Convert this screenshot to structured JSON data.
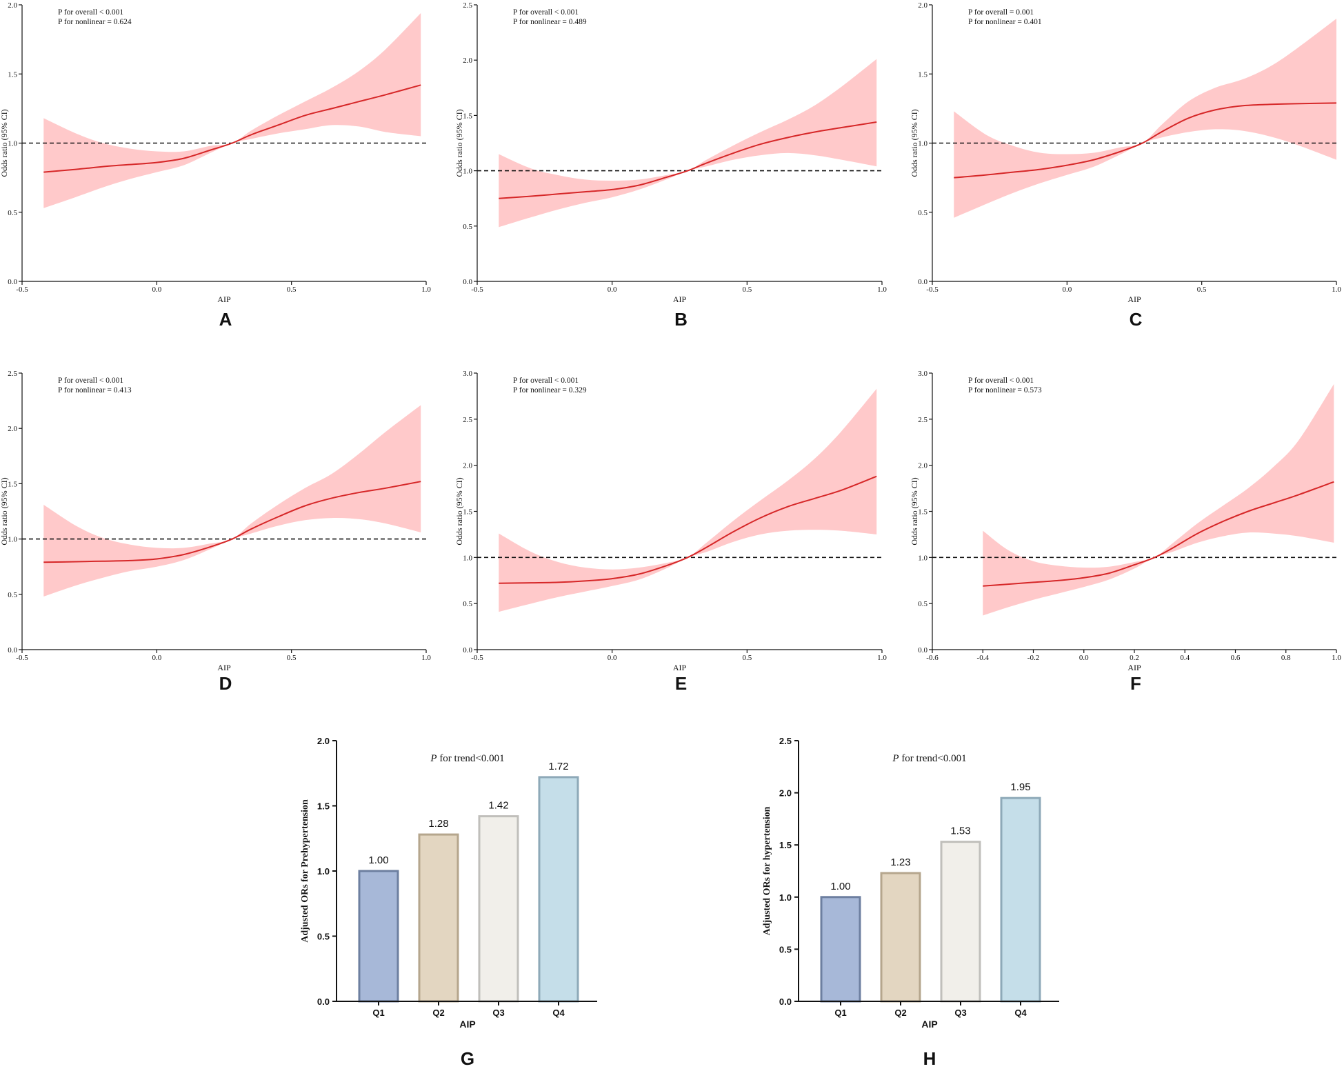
{
  "colors": {
    "curve": "#d62728",
    "band": "#ffc9ca",
    "axis": "#111111",
    "bar_q1": "#a7b8d8",
    "bar_q1_edge": "#6d7fa0",
    "bar_q2": "#e3d6c1",
    "bar_q2_edge": "#b5a68d",
    "bar_q3": "#f1efea",
    "bar_q3_edge": "#c0bfbb",
    "bar_q4": "#c5dee9",
    "bar_q4_edge": "#8ea9b8"
  },
  "chart_data": [
    {
      "panel": "A",
      "type": "line",
      "xlabel": "AIP",
      "ylabel": "Odds ratio (95% CI)",
      "xlim": [
        -0.5,
        1.0
      ],
      "ylim": [
        0.0,
        2.0
      ],
      "xticks": [
        -0.5,
        0.0,
        0.5,
        1.0
      ],
      "xtick_labels": [
        "-0.5",
        "0.0",
        "0.5",
        "1.0"
      ],
      "yticks": [
        0.0,
        0.5,
        1.0,
        1.5,
        2.0
      ],
      "ytick_labels": [
        "0.0",
        "0.5",
        "1.0",
        "1.5",
        "2.0"
      ],
      "reference_line": 1.0,
      "annotation_overall": "P for overall < 0.001",
      "annotation_nonlinear": "P for nonlinear = 0.624",
      "x": [
        -0.42,
        -0.3,
        -0.2,
        -0.1,
        0.0,
        0.1,
        0.2,
        0.28,
        0.35,
        0.45,
        0.55,
        0.65,
        0.75,
        0.85,
        0.98
      ],
      "y": [
        0.79,
        0.81,
        0.83,
        0.845,
        0.86,
        0.89,
        0.95,
        1.0,
        1.06,
        1.13,
        1.2,
        1.25,
        1.3,
        1.35,
        1.42
      ],
      "lower": [
        0.53,
        0.61,
        0.68,
        0.74,
        0.79,
        0.84,
        0.93,
        1.0,
        1.03,
        1.07,
        1.1,
        1.13,
        1.12,
        1.08,
        1.05
      ],
      "upper": [
        1.18,
        1.07,
        1.0,
        0.96,
        0.94,
        0.94,
        0.98,
        1.0,
        1.09,
        1.2,
        1.3,
        1.4,
        1.52,
        1.68,
        1.94
      ]
    },
    {
      "panel": "B",
      "type": "line",
      "xlabel": "AIP",
      "ylabel": "Odds ratio (95% CI)",
      "xlim": [
        -0.5,
        1.0
      ],
      "ylim": [
        0.0,
        2.5
      ],
      "xticks": [
        -0.5,
        0.0,
        0.5,
        1.0
      ],
      "xtick_labels": [
        "-0.5",
        "0.0",
        "0.5",
        "1.0"
      ],
      "yticks": [
        0.0,
        0.5,
        1.0,
        1.5,
        2.0,
        2.5
      ],
      "ytick_labels": [
        "0.0",
        "0.5",
        "1.0",
        "1.5",
        "2.0",
        "2.5"
      ],
      "reference_line": 1.0,
      "annotation_overall": "P for overall < 0.001",
      "annotation_nonlinear": "P for nonlinear = 0.489",
      "x": [
        -0.42,
        -0.3,
        -0.2,
        -0.1,
        0.0,
        0.1,
        0.2,
        0.28,
        0.35,
        0.45,
        0.55,
        0.65,
        0.75,
        0.85,
        0.98
      ],
      "y": [
        0.75,
        0.77,
        0.79,
        0.81,
        0.83,
        0.87,
        0.94,
        1.0,
        1.07,
        1.16,
        1.24,
        1.3,
        1.35,
        1.39,
        1.44
      ],
      "lower": [
        0.49,
        0.58,
        0.65,
        0.71,
        0.76,
        0.83,
        0.92,
        1.0,
        1.04,
        1.1,
        1.14,
        1.16,
        1.14,
        1.1,
        1.04
      ],
      "upper": [
        1.15,
        1.02,
        0.96,
        0.92,
        0.91,
        0.92,
        0.96,
        1.0,
        1.1,
        1.23,
        1.35,
        1.46,
        1.59,
        1.76,
        2.01
      ]
    },
    {
      "panel": "C",
      "type": "line",
      "xlabel": "AIP",
      "ylabel": "Odds ratio (95% CI)",
      "xlim": [
        -0.5,
        1.0
      ],
      "ylim": [
        0.0,
        2.0
      ],
      "xticks": [
        -0.5,
        0.0,
        0.5,
        1.0
      ],
      "xtick_labels": [
        "-0.5",
        "0.0",
        "0.5",
        "1.0"
      ],
      "yticks": [
        0.0,
        0.5,
        1.0,
        1.5,
        2.0
      ],
      "ytick_labels": [
        "0.0",
        "0.5",
        "1.0",
        "1.5",
        "2.0"
      ],
      "reference_line": 1.0,
      "annotation_overall": "P for overall = 0.001",
      "annotation_nonlinear": "P for nonlinear = 0.401",
      "x": [
        -0.42,
        -0.3,
        -0.2,
        -0.1,
        0.0,
        0.1,
        0.2,
        0.28,
        0.35,
        0.45,
        0.55,
        0.65,
        0.75,
        0.85,
        1.0
      ],
      "y": [
        0.75,
        0.77,
        0.79,
        0.81,
        0.84,
        0.88,
        0.94,
        1.0,
        1.08,
        1.18,
        1.24,
        1.27,
        1.28,
        1.285,
        1.29
      ],
      "lower": [
        0.46,
        0.56,
        0.64,
        0.71,
        0.77,
        0.83,
        0.92,
        1.0,
        1.04,
        1.08,
        1.1,
        1.09,
        1.05,
        0.99,
        0.88
      ],
      "upper": [
        1.23,
        1.06,
        0.98,
        0.93,
        0.92,
        0.93,
        0.97,
        1.0,
        1.13,
        1.3,
        1.4,
        1.46,
        1.55,
        1.68,
        1.9
      ]
    },
    {
      "panel": "D",
      "type": "line",
      "xlabel": "AIP",
      "ylabel": "Odds ratio (95% CI)",
      "xlim": [
        -0.5,
        1.0
      ],
      "ylim": [
        0.0,
        2.5
      ],
      "xticks": [
        -0.5,
        0.0,
        0.5,
        1.0
      ],
      "xtick_labels": [
        "-0.5",
        "0.0",
        "0.5",
        "1.0"
      ],
      "yticks": [
        0.0,
        0.5,
        1.0,
        1.5,
        2.0,
        2.5
      ],
      "ytick_labels": [
        "0.0",
        "0.5",
        "1.0",
        "1.5",
        "2.0",
        "2.5"
      ],
      "reference_line": 1.0,
      "annotation_overall": "P for overall < 0.001",
      "annotation_nonlinear": "P for nonlinear = 0.413",
      "x": [
        -0.42,
        -0.3,
        -0.2,
        -0.1,
        0.0,
        0.1,
        0.2,
        0.28,
        0.35,
        0.45,
        0.55,
        0.65,
        0.75,
        0.85,
        0.98
      ],
      "y": [
        0.79,
        0.795,
        0.8,
        0.805,
        0.82,
        0.86,
        0.93,
        1.0,
        1.09,
        1.2,
        1.3,
        1.37,
        1.42,
        1.46,
        1.52
      ],
      "lower": [
        0.48,
        0.58,
        0.65,
        0.71,
        0.75,
        0.81,
        0.91,
        1.0,
        1.05,
        1.12,
        1.17,
        1.19,
        1.18,
        1.14,
        1.06
      ],
      "upper": [
        1.31,
        1.12,
        1.01,
        0.95,
        0.92,
        0.92,
        0.96,
        1.0,
        1.14,
        1.31,
        1.46,
        1.59,
        1.77,
        1.97,
        2.21
      ]
    },
    {
      "panel": "E",
      "type": "line",
      "xlabel": "AIP",
      "ylabel": "Odds ratio (95% CI)",
      "xlim": [
        -0.5,
        1.0
      ],
      "ylim": [
        0.0,
        3.0
      ],
      "xticks": [
        -0.5,
        0.0,
        0.5,
        1.0
      ],
      "xtick_labels": [
        "-0.5",
        "0.0",
        "0.5",
        "1.0"
      ],
      "yticks": [
        0.0,
        0.5,
        1.0,
        1.5,
        2.0,
        2.5,
        3.0
      ],
      "ytick_labels": [
        "0.0",
        "0.5",
        "1.0",
        "1.5",
        "2.0",
        "2.5",
        "3.0"
      ],
      "reference_line": 1.0,
      "annotation_overall": "P for overall < 0.001",
      "annotation_nonlinear": "P for nonlinear = 0.329",
      "x": [
        -0.42,
        -0.3,
        -0.2,
        -0.1,
        0.0,
        0.1,
        0.2,
        0.28,
        0.35,
        0.45,
        0.55,
        0.65,
        0.75,
        0.85,
        0.98
      ],
      "y": [
        0.72,
        0.725,
        0.73,
        0.745,
        0.77,
        0.82,
        0.91,
        1.0,
        1.11,
        1.28,
        1.43,
        1.55,
        1.64,
        1.73,
        1.88
      ],
      "lower": [
        0.41,
        0.5,
        0.57,
        0.63,
        0.69,
        0.76,
        0.88,
        1.0,
        1.06,
        1.17,
        1.25,
        1.29,
        1.3,
        1.29,
        1.25
      ],
      "upper": [
        1.26,
        1.06,
        0.95,
        0.89,
        0.87,
        0.89,
        0.94,
        1.0,
        1.16,
        1.4,
        1.62,
        1.83,
        2.07,
        2.37,
        2.83
      ]
    },
    {
      "panel": "F",
      "type": "line",
      "xlabel": "AIP",
      "ylabel": "Odds ratio (95% CI)",
      "xlim": [
        -0.6,
        1.0
      ],
      "ylim": [
        0.0,
        3.0
      ],
      "xticks": [
        -0.6,
        -0.4,
        -0.2,
        0.0,
        0.2,
        0.4,
        0.6,
        0.8,
        1.0
      ],
      "xtick_labels": [
        "-0.6",
        "-0.4",
        "-0.2",
        "0.0",
        "0.2",
        "0.4",
        "0.6",
        "0.8",
        "1.0"
      ],
      "yticks": [
        0.0,
        0.5,
        1.0,
        1.5,
        2.0,
        2.5,
        3.0
      ],
      "ytick_labels": [
        "0.0",
        "0.5",
        "1.0",
        "1.5",
        "2.0",
        "2.5",
        "3.0"
      ],
      "reference_line": 1.0,
      "annotation_overall": "P for overall < 0.001",
      "annotation_nonlinear": "P for nonlinear = 0.573",
      "x": [
        -0.4,
        -0.3,
        -0.2,
        -0.1,
        0.0,
        0.1,
        0.2,
        0.28,
        0.35,
        0.45,
        0.55,
        0.65,
        0.75,
        0.85,
        0.99
      ],
      "y": [
        0.69,
        0.71,
        0.73,
        0.75,
        0.78,
        0.83,
        0.92,
        1.0,
        1.1,
        1.26,
        1.39,
        1.5,
        1.59,
        1.68,
        1.82
      ],
      "lower": [
        0.37,
        0.46,
        0.54,
        0.61,
        0.68,
        0.76,
        0.88,
        1.0,
        1.06,
        1.16,
        1.23,
        1.27,
        1.26,
        1.23,
        1.16
      ],
      "upper": [
        1.29,
        1.08,
        0.96,
        0.91,
        0.89,
        0.9,
        0.95,
        1.0,
        1.15,
        1.37,
        1.56,
        1.75,
        1.98,
        2.27,
        2.88
      ]
    },
    {
      "panel": "G",
      "type": "bar",
      "xlabel": "AIP",
      "ylabel": "Adjusted ORs for Prehypertension",
      "ylim": [
        0.0,
        2.0
      ],
      "yticks": [
        0.0,
        0.5,
        1.0,
        1.5,
        2.0
      ],
      "ytick_labels": [
        "0.0",
        "0.5",
        "1.0",
        "1.5",
        "2.0"
      ],
      "categories": [
        "Q1",
        "Q2",
        "Q3",
        "Q4"
      ],
      "values": [
        1.0,
        1.28,
        1.42,
        1.72
      ],
      "value_labels": [
        "1.00",
        "1.28",
        "1.42",
        "1.72"
      ],
      "annotation_p": "P",
      "annotation_rest": " for trend<0.001"
    },
    {
      "panel": "H",
      "type": "bar",
      "xlabel": "AIP",
      "ylabel": "Adjusted ORs for hypertension",
      "ylim": [
        0.0,
        2.5
      ],
      "yticks": [
        0.0,
        0.5,
        1.0,
        1.5,
        2.0,
        2.5
      ],
      "ytick_labels": [
        "0.0",
        "0.5",
        "1.0",
        "1.5",
        "2.0",
        "2.5"
      ],
      "categories": [
        "Q1",
        "Q2",
        "Q3",
        "Q4"
      ],
      "values": [
        1.0,
        1.23,
        1.53,
        1.95
      ],
      "value_labels": [
        "1.00",
        "1.23",
        "1.53",
        "1.95"
      ],
      "annotation_p": "P",
      "annotation_rest": " for trend<0.001"
    }
  ]
}
